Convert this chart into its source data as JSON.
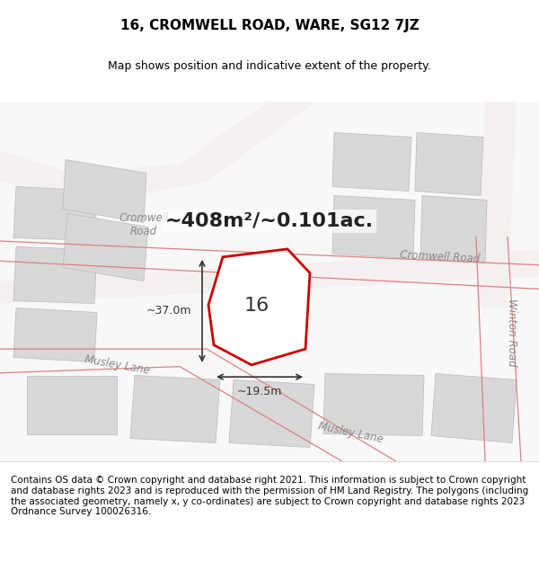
{
  "title": "16, CROMWELL ROAD, WARE, SG12 7JZ",
  "subtitle": "Map shows position and indicative extent of the property.",
  "footer": "Contains OS data © Crown copyright and database right 2021. This information is subject to Crown copyright and database rights 2023 and is reproduced with the permission of HM Land Registry. The polygons (including the associated geometry, namely x, y co-ordinates) are subject to Crown copyright and database rights 2023 Ordnance Survey 100026316.",
  "area_label": "~408m²/~0.101ac.",
  "property_number": "16",
  "dim_width": "~19.5m",
  "dim_height": "~37.0m",
  "road_label_cromwell_top": "Cromwell Road",
  "road_label_cromwell_main": "Cromwell Road",
  "road_label_musley": "Musley Lane",
  "road_label_winton": "Winton Road",
  "bg_color": "#f5f5f5",
  "map_bg": "#ffffff",
  "road_color": "#f0f0f0",
  "road_line_color": "#e08080",
  "building_fill": "#d8d8d8",
  "building_edge": "#c0c0c0",
  "property_fill": "#ffffff",
  "property_edge": "#cc0000",
  "dim_line_color": "#333333",
  "title_fontsize": 11,
  "subtitle_fontsize": 9,
  "footer_fontsize": 7.5
}
